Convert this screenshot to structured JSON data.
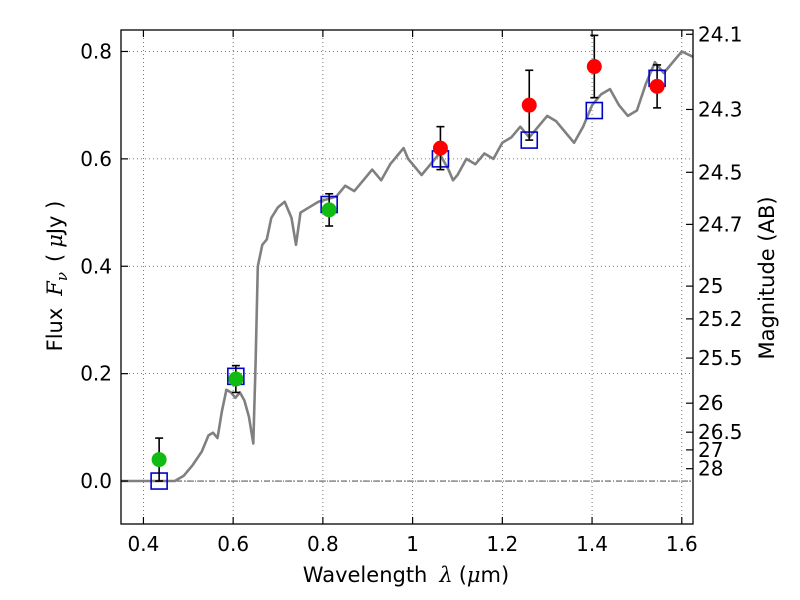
{
  "chart_data": {
    "type": "scatter",
    "xlabel": "Wavelength",
    "xlabel_symbol": "λ",
    "xlabel_unit_open": "(",
    "xlabel_unit_symbol": "μ",
    "xlabel_unit_rest": "m)",
    "ylabel": "Flux",
    "ylabel_symbol": "F",
    "ylabel_subscript": "ν",
    "ylabel_unit_open": "(",
    "ylabel_unit_symbol": "μ",
    "ylabel_unit_rest": "Jy )",
    "y2label": "Magnitude (AB)",
    "xlim": [
      0.35,
      1.625
    ],
    "ylim": [
      -0.08,
      0.84
    ],
    "grid": true,
    "x_ticks": [
      {
        "value": 0.4,
        "label": "0.4"
      },
      {
        "value": 0.6,
        "label": "0.6"
      },
      {
        "value": 0.8,
        "label": "0.8"
      },
      {
        "value": 1.0,
        "label": "1"
      },
      {
        "value": 1.2,
        "label": "1.2"
      },
      {
        "value": 1.4,
        "label": "1.4"
      },
      {
        "value": 1.6,
        "label": "1.6"
      }
    ],
    "y_ticks": [
      {
        "value": 0.0,
        "label": "0.0"
      },
      {
        "value": 0.2,
        "label": "0.2"
      },
      {
        "value": 0.4,
        "label": "0.4"
      },
      {
        "value": 0.6,
        "label": "0.6"
      },
      {
        "value": 0.8,
        "label": "0.8"
      }
    ],
    "mag_ticks": [
      {
        "flux": 0.832,
        "label": "24.1"
      },
      {
        "flux": 0.692,
        "label": "24.3"
      },
      {
        "flux": 0.575,
        "label": "24.5"
      },
      {
        "flux": 0.478,
        "label": "24.7"
      },
      {
        "flux": 0.363,
        "label": "25"
      },
      {
        "flux": 0.302,
        "label": "25.2"
      },
      {
        "flux": 0.229,
        "label": "25.5"
      },
      {
        "flux": 0.145,
        "label": "26"
      },
      {
        "flux": 0.091,
        "label": "26.5"
      },
      {
        "flux": 0.058,
        "label": "27"
      },
      {
        "flux": 0.023,
        "label": "28"
      }
    ],
    "zero_line": 0.0,
    "model_spectrum": [
      [
        0.35,
        0.0
      ],
      [
        0.47,
        0.0
      ],
      [
        0.49,
        0.01
      ],
      [
        0.51,
        0.03
      ],
      [
        0.53,
        0.055
      ],
      [
        0.545,
        0.085
      ],
      [
        0.555,
        0.09
      ],
      [
        0.565,
        0.08
      ],
      [
        0.575,
        0.13
      ],
      [
        0.585,
        0.17
      ],
      [
        0.595,
        0.165
      ],
      [
        0.605,
        0.155
      ],
      [
        0.615,
        0.165
      ],
      [
        0.625,
        0.15
      ],
      [
        0.635,
        0.12
      ],
      [
        0.645,
        0.07
      ],
      [
        0.65,
        0.22
      ],
      [
        0.655,
        0.4
      ],
      [
        0.665,
        0.44
      ],
      [
        0.675,
        0.45
      ],
      [
        0.685,
        0.49
      ],
      [
        0.7,
        0.51
      ],
      [
        0.715,
        0.52
      ],
      [
        0.73,
        0.49
      ],
      [
        0.74,
        0.44
      ],
      [
        0.75,
        0.5
      ],
      [
        0.77,
        0.51
      ],
      [
        0.79,
        0.52
      ],
      [
        0.81,
        0.525
      ],
      [
        0.83,
        0.53
      ],
      [
        0.85,
        0.55
      ],
      [
        0.87,
        0.54
      ],
      [
        0.89,
        0.56
      ],
      [
        0.91,
        0.58
      ],
      [
        0.93,
        0.56
      ],
      [
        0.95,
        0.59
      ],
      [
        0.97,
        0.61
      ],
      [
        0.98,
        0.62
      ],
      [
        0.99,
        0.6
      ],
      [
        1.0,
        0.59
      ],
      [
        1.02,
        0.57
      ],
      [
        1.04,
        0.59
      ],
      [
        1.06,
        0.61
      ],
      [
        1.08,
        0.58
      ],
      [
        1.09,
        0.56
      ],
      [
        1.1,
        0.57
      ],
      [
        1.12,
        0.6
      ],
      [
        1.14,
        0.59
      ],
      [
        1.16,
        0.61
      ],
      [
        1.18,
        0.6
      ],
      [
        1.2,
        0.63
      ],
      [
        1.22,
        0.64
      ],
      [
        1.24,
        0.66
      ],
      [
        1.26,
        0.64
      ],
      [
        1.28,
        0.66
      ],
      [
        1.3,
        0.68
      ],
      [
        1.32,
        0.67
      ],
      [
        1.34,
        0.65
      ],
      [
        1.36,
        0.63
      ],
      [
        1.38,
        0.66
      ],
      [
        1.4,
        0.7
      ],
      [
        1.42,
        0.72
      ],
      [
        1.44,
        0.73
      ],
      [
        1.46,
        0.7
      ],
      [
        1.48,
        0.68
      ],
      [
        1.5,
        0.69
      ],
      [
        1.52,
        0.74
      ],
      [
        1.54,
        0.78
      ],
      [
        1.56,
        0.76
      ],
      [
        1.58,
        0.78
      ],
      [
        1.6,
        0.8
      ],
      [
        1.625,
        0.79
      ]
    ],
    "model_points": [
      {
        "x": 0.435,
        "y": 0.0
      },
      {
        "x": 0.606,
        "y": 0.195
      },
      {
        "x": 0.814,
        "y": 0.515
      },
      {
        "x": 1.062,
        "y": 0.6
      },
      {
        "x": 1.26,
        "y": 0.635
      },
      {
        "x": 1.405,
        "y": 0.69
      },
      {
        "x": 1.545,
        "y": 0.75
      }
    ],
    "observations": [
      {
        "x": 0.435,
        "y": 0.04,
        "err": 0.04,
        "color": "#11bb11"
      },
      {
        "x": 0.606,
        "y": 0.19,
        "err": 0.025,
        "color": "#11bb11"
      },
      {
        "x": 0.814,
        "y": 0.505,
        "err": 0.03,
        "color": "#11bb11"
      },
      {
        "x": 1.062,
        "y": 0.62,
        "err": 0.04,
        "color": "#ff0000"
      },
      {
        "x": 1.26,
        "y": 0.7,
        "err": 0.065,
        "color": "#ff0000"
      },
      {
        "x": 1.405,
        "y": 0.772,
        "err": 0.058,
        "color": "#ff0000"
      },
      {
        "x": 1.545,
        "y": 0.735,
        "err": 0.04,
        "color": "#ff0000"
      }
    ],
    "colors": {
      "spectrum": "#808080",
      "model_box": "#0000cc",
      "errorbar": "#000000",
      "grid": "#555555"
    }
  }
}
